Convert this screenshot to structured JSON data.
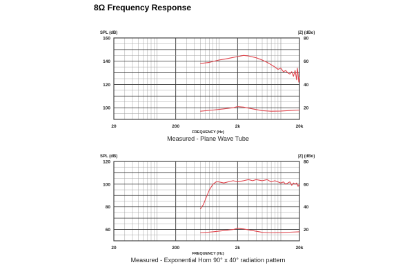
{
  "page_title": "8Ω Frequency Response",
  "colors": {
    "curve": "#e0444c",
    "grid": "#999999",
    "frame": "#333333"
  },
  "chart_data": [
    {
      "type": "line",
      "title": "Measured - Plane Wave Tube",
      "xlabel": "FREQUENCY (Hz)",
      "ylabel": "SPL (dB)",
      "y2label": "|Z| (dBo)",
      "xscale": "log",
      "xlim": [
        20,
        20000
      ],
      "ylim": [
        90,
        160
      ],
      "y2lim": [
        10,
        80
      ],
      "x_ticks": [
        20,
        200,
        2000,
        20000
      ],
      "x_tick_labels": [
        "20",
        "200",
        "2k",
        "20k"
      ],
      "y_ticks": [
        100,
        120,
        140,
        160
      ],
      "y2_ticks": [
        20,
        40,
        60,
        80
      ],
      "grid": true,
      "series": [
        {
          "axis": "left",
          "x": [
            500,
            700,
            1000,
            1300,
            1600,
            2000,
            2500,
            3000,
            4000,
            5000,
            6000,
            7000,
            8000,
            9000,
            10000,
            11000,
            12000,
            13000,
            14000,
            15000,
            16000,
            17000,
            18000,
            18500,
            19000,
            19500,
            20000
          ],
          "values": [
            138,
            139,
            141,
            142,
            143,
            144,
            145,
            144.5,
            143,
            141,
            139,
            137,
            135,
            133,
            134,
            131,
            132,
            130,
            129,
            131,
            127,
            132,
            124,
            134,
            129,
            122,
            126
          ]
        },
        {
          "axis": "right",
          "x": [
            500,
            800,
            1200,
            1700,
            2000,
            2500,
            3500,
            5000,
            7000,
            10000,
            14000,
            20000
          ],
          "values": [
            17,
            18,
            19,
            20,
            21,
            20.5,
            19,
            17.5,
            17,
            17.2,
            17.6,
            18
          ]
        }
      ]
    },
    {
      "type": "line",
      "title": "Measured - Exponential Horn 90° x 40° radiation pattern",
      "xlabel": "FREQUENCY (Hz)",
      "ylabel": "SPL (dB)",
      "y2label": "|Z| (dBo)",
      "xscale": "log",
      "xlim": [
        20,
        20000
      ],
      "ylim": [
        50,
        120
      ],
      "y2lim": [
        10,
        80
      ],
      "x_ticks": [
        20,
        200,
        2000,
        20000
      ],
      "x_tick_labels": [
        "20",
        "200",
        "2k",
        "20k"
      ],
      "y_ticks": [
        60,
        80,
        100,
        120
      ],
      "y2_ticks": [
        20,
        40,
        60,
        80
      ],
      "grid": true,
      "series": [
        {
          "axis": "left",
          "x": [
            500,
            560,
            620,
            700,
            800,
            900,
            1000,
            1200,
            1400,
            1700,
            2000,
            2500,
            3000,
            3500,
            4000,
            5000,
            6000,
            7000,
            8000,
            9000,
            10000,
            11000,
            12000,
            13000,
            14000,
            15000,
            16000,
            17000,
            18000,
            19000,
            20000
          ],
          "values": [
            78,
            82,
            88,
            95,
            100,
            102,
            102,
            101,
            102,
            103,
            102,
            103,
            104,
            103,
            104,
            103,
            104,
            102,
            103,
            102,
            101,
            102,
            100,
            101,
            102,
            99,
            101,
            100,
            101,
            98,
            100
          ]
        },
        {
          "axis": "right",
          "x": [
            500,
            800,
            1200,
            1700,
            2000,
            2500,
            3500,
            5000,
            7000,
            10000,
            14000,
            20000
          ],
          "values": [
            17,
            18,
            19,
            20,
            21,
            20.5,
            19,
            17.5,
            17,
            17.2,
            17.6,
            18
          ]
        }
      ]
    }
  ]
}
